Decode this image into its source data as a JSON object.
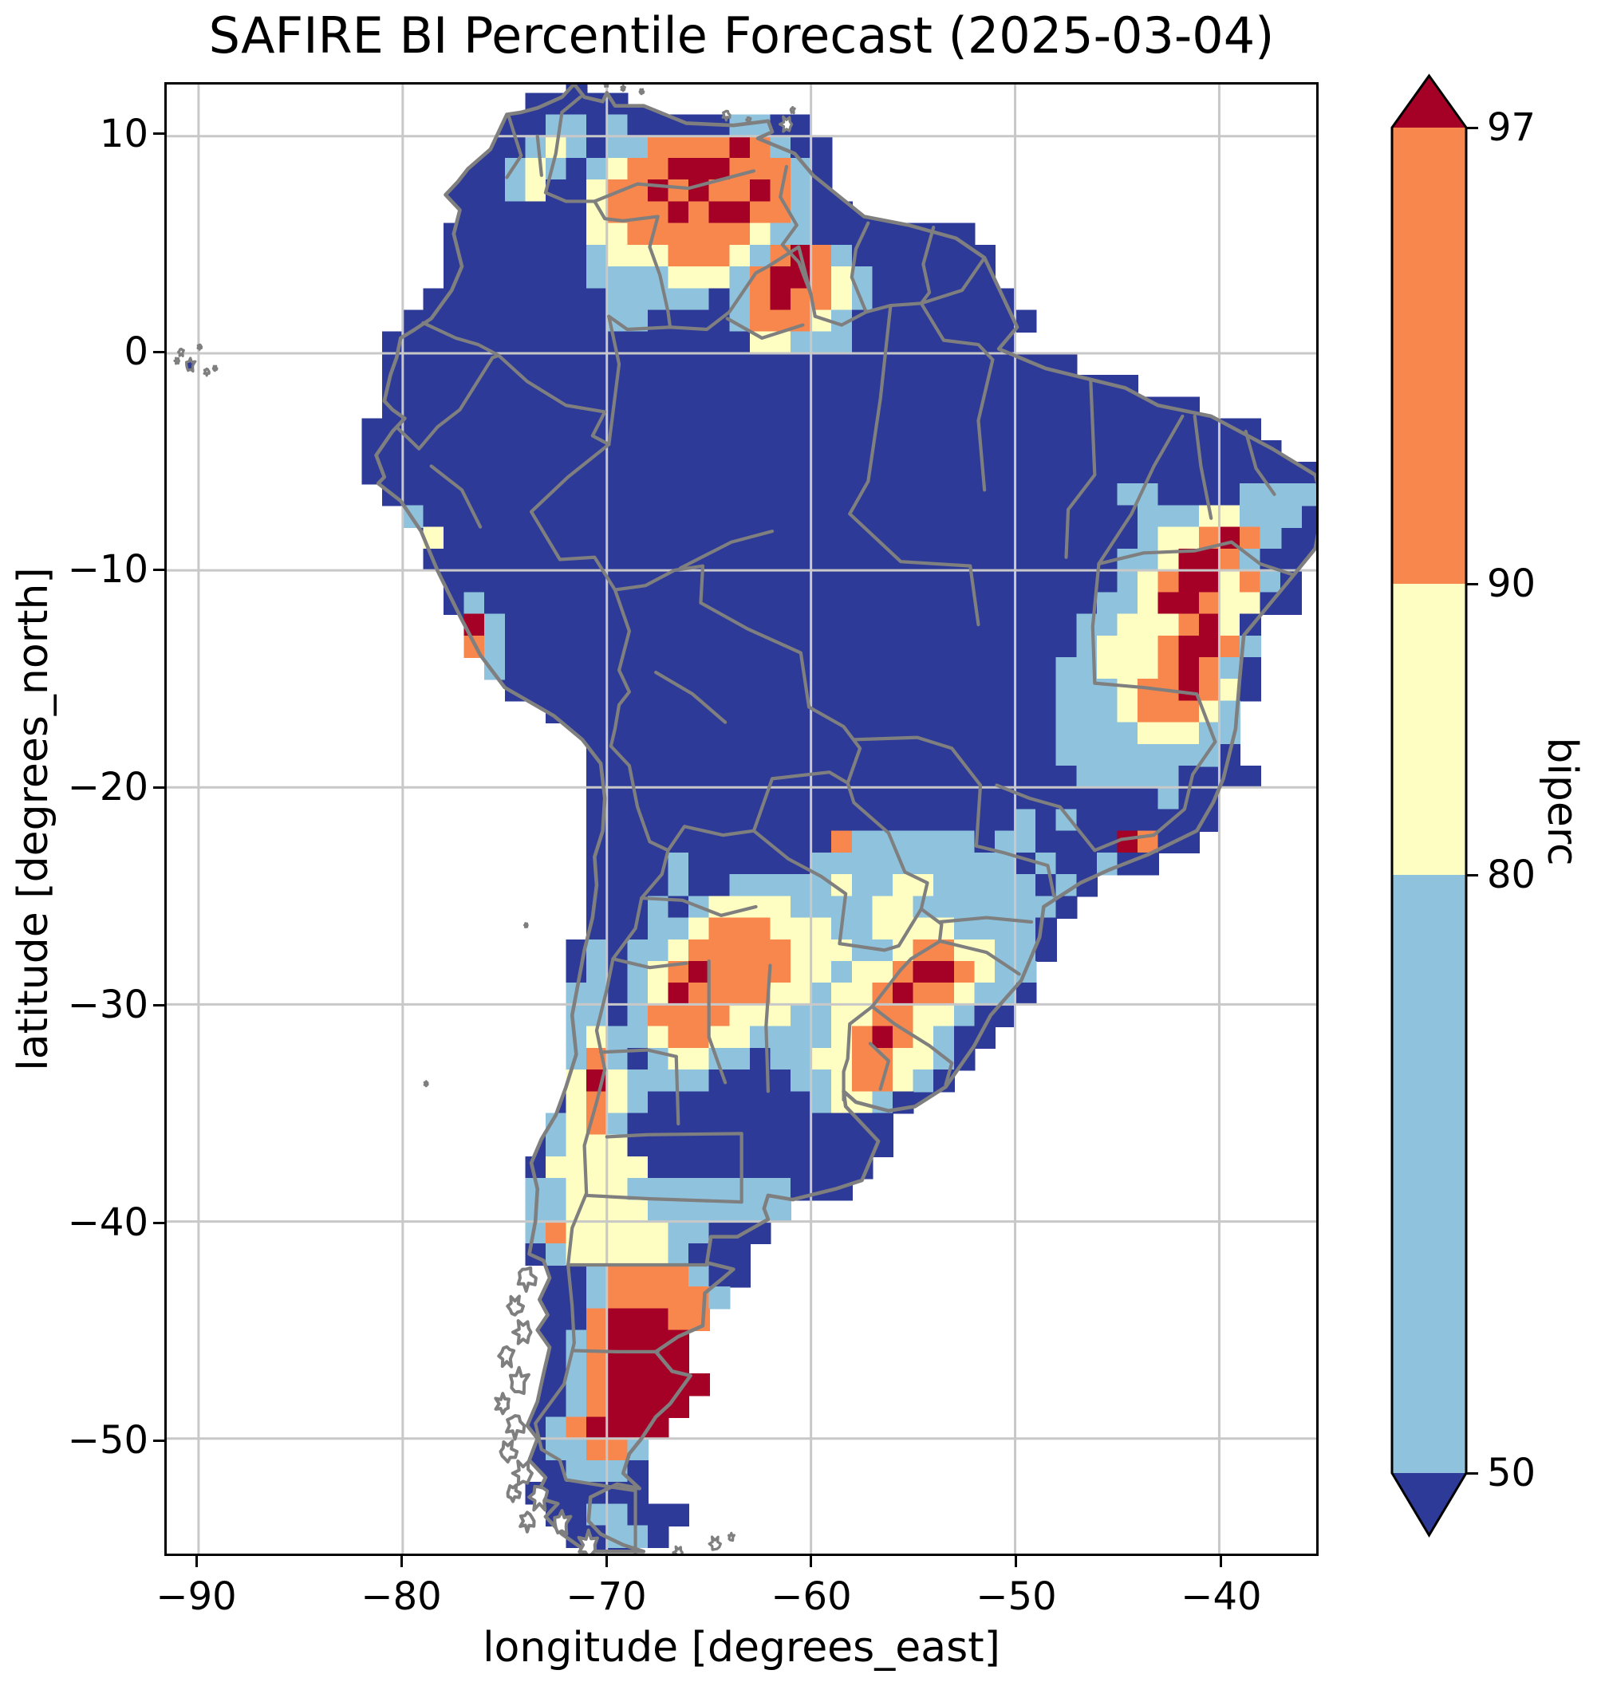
{
  "figure": {
    "title": "SAFIRE BI Percentile Forecast (2025-03-04)"
  },
  "axes": {
    "xlabel": "longitude [degrees_east]",
    "ylabel": "latitude [degrees_north]",
    "x_ticks": [
      -90,
      -80,
      -70,
      -60,
      -50,
      -40
    ],
    "y_ticks": [
      10,
      0,
      -10,
      -20,
      -30,
      -40,
      -50
    ],
    "extent": {
      "lon_min": -91.56,
      "lon_max": -35.25,
      "lat_min": -55.3,
      "lat_max": 12.38
    }
  },
  "colorbar": {
    "label": "biperc",
    "tick_values": [
      97,
      90,
      80,
      50
    ],
    "classes": [
      {
        "range": "> 97",
        "color": "#A50026"
      },
      {
        "range": "90-97",
        "color": "#F8874E"
      },
      {
        "range": "80-90",
        "color": "#FEFEC2"
      },
      {
        "range": "50-80",
        "color": "#8FC3DD"
      },
      {
        "range": "< 50",
        "color": "#2D3A97"
      }
    ]
  },
  "map": {
    "colors": {
      "1": "#2D3A97",
      "2": "#8FC3DD",
      "3": "#FEFEC2",
      "4": "#F8874E",
      "5": "#A50026"
    },
    "grid": {
      "lon_origin": -92,
      "lat_origin_top": 13,
      "cell_deg": 1,
      "legend": {
        "1": "<50",
        "2": "50-80",
        "3": "80-90",
        "4": "90-97",
        "5": ">97",
        ".": "no data"
      },
      "rows": [
        "....................1.....................................",
        "..................11111...................................",
        ".................112212111112211..........................",
        ".................1232122444454211.........................",
        "................12321234455544421.........................",
        "...............112311344545445421.........................",
        "...............1111113444545544211........................",
        "..............11111113344444432211111111..................",
        "..............111111123334443245421111111.................",
        "..............111111122223332455432111111.................",
        ".............11111111122222124544321111111................",
        "............1111111111221111244432111111111...............",
        "...........1111111111111111113322211111111................",
        "...........1111111111111111111111111111111111.............",
        "...........1111111111111111111111111111111111111..........",
        "...........1111111111111111111111111111111111111111.......",
        "..........11111111111111111111111111111111111111111111....",
        "..........111111111111111111111111111111111111111111111...",
        "..........11111111111111111111111111111111111111111111111.",
        "...........1111111111111111111111111111111111112211112222.",
        "............21111111111111111111111111111111111122233222.",
        ".............311111111111111111111111111111111112334542two.",
        ".............111111111111111111111111111111111122355421.",
        "..............111111111111111111111111111111111234553421..",
        "..............121111111111111111111111111111112235543311...",
        "...............521111111111111111111111111111223334531....",
        "...............421111111111111111111111111111233345542....",
        "................21111111111111111111111111112233345421....",
        ".................1111111111111111111111111112223445431....",
        "...................1111111111111111111111111222344432.....",
        ".....................11111111111111111111111222233322.....",
        ".....................11111111111111111111111222222221.....",
        ".....................111111111111111111111111222221 11.....",
        ".....................1111111111111111111111111111211......",
        ".....................1111111111111111111112121111111......",
        ".....................111111111111422222212211115411.......",
        ".....................1111211111122222222221211211.........",
        ".....................1111211222223223322222121............",
        ".....................111212333322223322222221.............",
        ".....................11122344433322333322221..............",
        "....................121223444443332234433221..............",
        "....................12123454444332334554322...............",
        "....................22123544443323345443221...............",
        "....................2212444433322334433211................",
        "....................232234433222234543211.................",
        "....................24212332212233443321..................",
        "....................3532222111122344321...................",
        "....................34321111111123321.....................",
        "...................23421111111111111......................",
        "...................23331111111111111......................",
        "..................13333311111111111.......................",
        "..................2233322222222111........................",
        "..................2233332222222...........................",
        "..................243333322111............................",
        "..................12333332111.............................",
        "....................124444211.............................",
        "....................12444442..............................",
        "....................1455544...............................",
        "....................245555................................",
        "....................245555................................",
        "....................2455555...............................",
        "....................245555................................",
        "...................245555.................................",
        "...................22442..................................",
        "...................12221..................................",
        "..................111111..................................",
        "...................1122111................................",
        "....................11221................................."
      ]
    }
  }
}
